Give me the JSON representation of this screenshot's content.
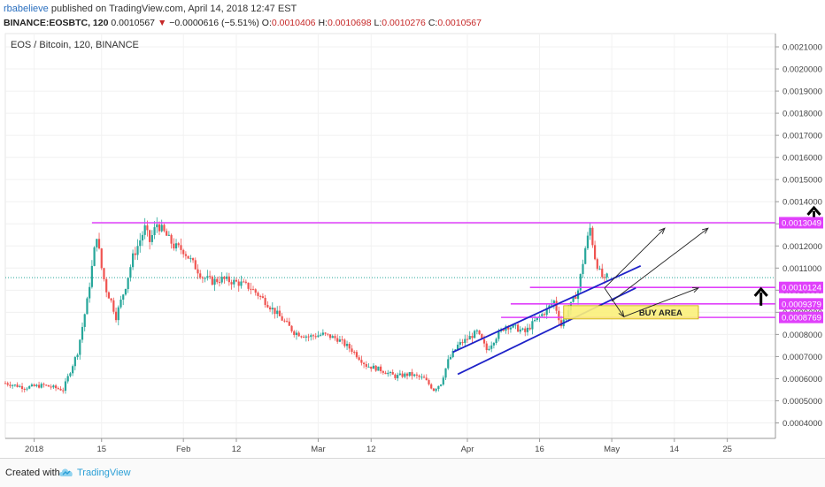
{
  "header": {
    "username": "rbabelieve",
    "published": "published on TradingView.com, April 14, 2018 12:47 EST",
    "symbol": "BINANCE:EOSBTC, 120",
    "last": "0.0010567",
    "down_arrow": "▼",
    "change": "−0.0000616 (−5.51%)",
    "o_label": "O:",
    "o_value": "0.0010406",
    "h_label": "H:",
    "h_value": "0.0010698",
    "l_label": "L:",
    "l_value": "0.0010276",
    "c_label": "C:",
    "c_value": "0.0010567"
  },
  "chart_label": "EOS / Bitcoin, 120, BINANCE",
  "footer": {
    "created_with": "Created with",
    "brand": "TradingView"
  },
  "colors": {
    "candle_up": "#26a69a",
    "candle_down": "#ef5350",
    "level_line": "#e040fb",
    "channel_line": "#1e22c8",
    "buy_area": "#fbf07a",
    "last_price_line": "#26a69a"
  },
  "chart_data": {
    "type": "candlestick",
    "title": "EOS / Bitcoin, 120, BINANCE",
    "ylim": [
      0.00033,
      0.00216
    ],
    "y_ticks": [
      "0.0004000",
      "0.0005000",
      "0.0006000",
      "0.0007000",
      "0.0008000",
      "0.0009000",
      "0.0010000",
      "0.0011000",
      "0.0012000",
      "0.0013000",
      "0.0014000",
      "0.0015000",
      "0.0016000",
      "0.0017000",
      "0.0018000",
      "0.0019000",
      "0.0020000",
      "0.0021000"
    ],
    "x_tick_labels": [
      "2018",
      "15",
      "Feb",
      "12",
      "Mar",
      "12",
      "Apr",
      "16",
      "May",
      "14",
      "25"
    ],
    "x_tick_days": [
      0,
      14,
      31,
      42,
      59,
      70,
      90,
      105,
      120,
      133,
      144
    ],
    "x_range_days": [
      -6,
      154
    ],
    "price_path": [
      [
        -6,
        0.00058
      ],
      [
        -2,
        0.00056
      ],
      [
        2,
        0.00057
      ],
      [
        6,
        0.00055
      ],
      [
        9,
        0.00072
      ],
      [
        11,
        0.00095
      ],
      [
        12.5,
        0.00118
      ],
      [
        13,
        0.00125
      ],
      [
        14,
        0.0011
      ],
      [
        15,
        0.001
      ],
      [
        16,
        0.00095
      ],
      [
        17,
        0.00088
      ],
      [
        19,
        0.00102
      ],
      [
        20.5,
        0.00115
      ],
      [
        21.5,
        0.0012
      ],
      [
        23,
        0.00128
      ],
      [
        24,
        0.00122
      ],
      [
        25.5,
        0.0013
      ],
      [
        27,
        0.00126
      ],
      [
        29,
        0.0012
      ],
      [
        31,
        0.00118
      ],
      [
        33,
        0.00112
      ],
      [
        35,
        0.00106
      ],
      [
        37,
        0.00104
      ],
      [
        39,
        0.00105
      ],
      [
        41,
        0.00104
      ],
      [
        43,
        0.00103
      ],
      [
        45,
        0.00101
      ],
      [
        48,
        0.00095
      ],
      [
        51,
        0.00088
      ],
      [
        54,
        0.00081
      ],
      [
        57,
        0.00079
      ],
      [
        60,
        0.0008
      ],
      [
        63,
        0.00078
      ],
      [
        66,
        0.00073
      ],
      [
        69,
        0.00066
      ],
      [
        72,
        0.00064
      ],
      [
        75,
        0.00061
      ],
      [
        78,
        0.00062
      ],
      [
        81,
        0.0006
      ],
      [
        83,
        0.00055
      ],
      [
        84.5,
        0.00058
      ],
      [
        86,
        0.00068
      ],
      [
        88,
        0.00075
      ],
      [
        90,
        0.00078
      ],
      [
        92,
        0.00081
      ],
      [
        94,
        0.00073
      ],
      [
        96,
        0.00079
      ],
      [
        98,
        0.00084
      ],
      [
        100,
        0.00083
      ],
      [
        102,
        0.00081
      ],
      [
        104,
        0.00086
      ],
      [
        106,
        0.0009
      ],
      [
        108,
        0.00095
      ],
      [
        109.5,
        0.00084
      ],
      [
        111,
        0.00091
      ],
      [
        113,
        0.001
      ],
      [
        114.5,
        0.00119
      ],
      [
        115.5,
        0.00128
      ],
      [
        116.5,
        0.00115
      ],
      [
        117.5,
        0.00108
      ],
      [
        118.5,
        0.00104
      ],
      [
        119,
        0.00106
      ]
    ],
    "last_price": 0.0010567,
    "horizontal_levels": [
      {
        "price": 0.0013049,
        "label": "0.0013049",
        "from_day": 12
      },
      {
        "price": 0.0010124,
        "label": "0.0010124",
        "from_day": 103
      },
      {
        "price": 0.0009379,
        "label": "0.0009379",
        "from_day": 99
      },
      {
        "price": 0.0008769,
        "label": "0.0008769",
        "from_day": 97
      }
    ],
    "channel_lines": [
      {
        "from": [
          87,
          0.00072
        ],
        "to": [
          126,
          0.00111
        ]
      },
      {
        "from": [
          88,
          0.00062
        ],
        "to": [
          125,
          0.00101
        ]
      }
    ],
    "arrows": [
      {
        "from": [
          118.5,
          0.00101
        ],
        "to": [
          131,
          0.00128
        ]
      },
      {
        "from": [
          120,
          0.00095
        ],
        "to": [
          140,
          0.00128
        ]
      },
      {
        "from": [
          118.5,
          0.00101
        ],
        "to": [
          122.5,
          0.00088
        ]
      },
      {
        "from": [
          122.5,
          0.00088
        ],
        "to": [
          138,
          0.00101
        ]
      }
    ],
    "thick_up_arrows": [
      {
        "day": 162,
        "price": 0.0013049
      },
      {
        "day": 151,
        "price": 0.0009379
      }
    ],
    "buy_area": {
      "from_day": 110,
      "to_day": 138,
      "top": 0.00093,
      "bottom": 0.00087,
      "label": "BUY AREA"
    }
  }
}
